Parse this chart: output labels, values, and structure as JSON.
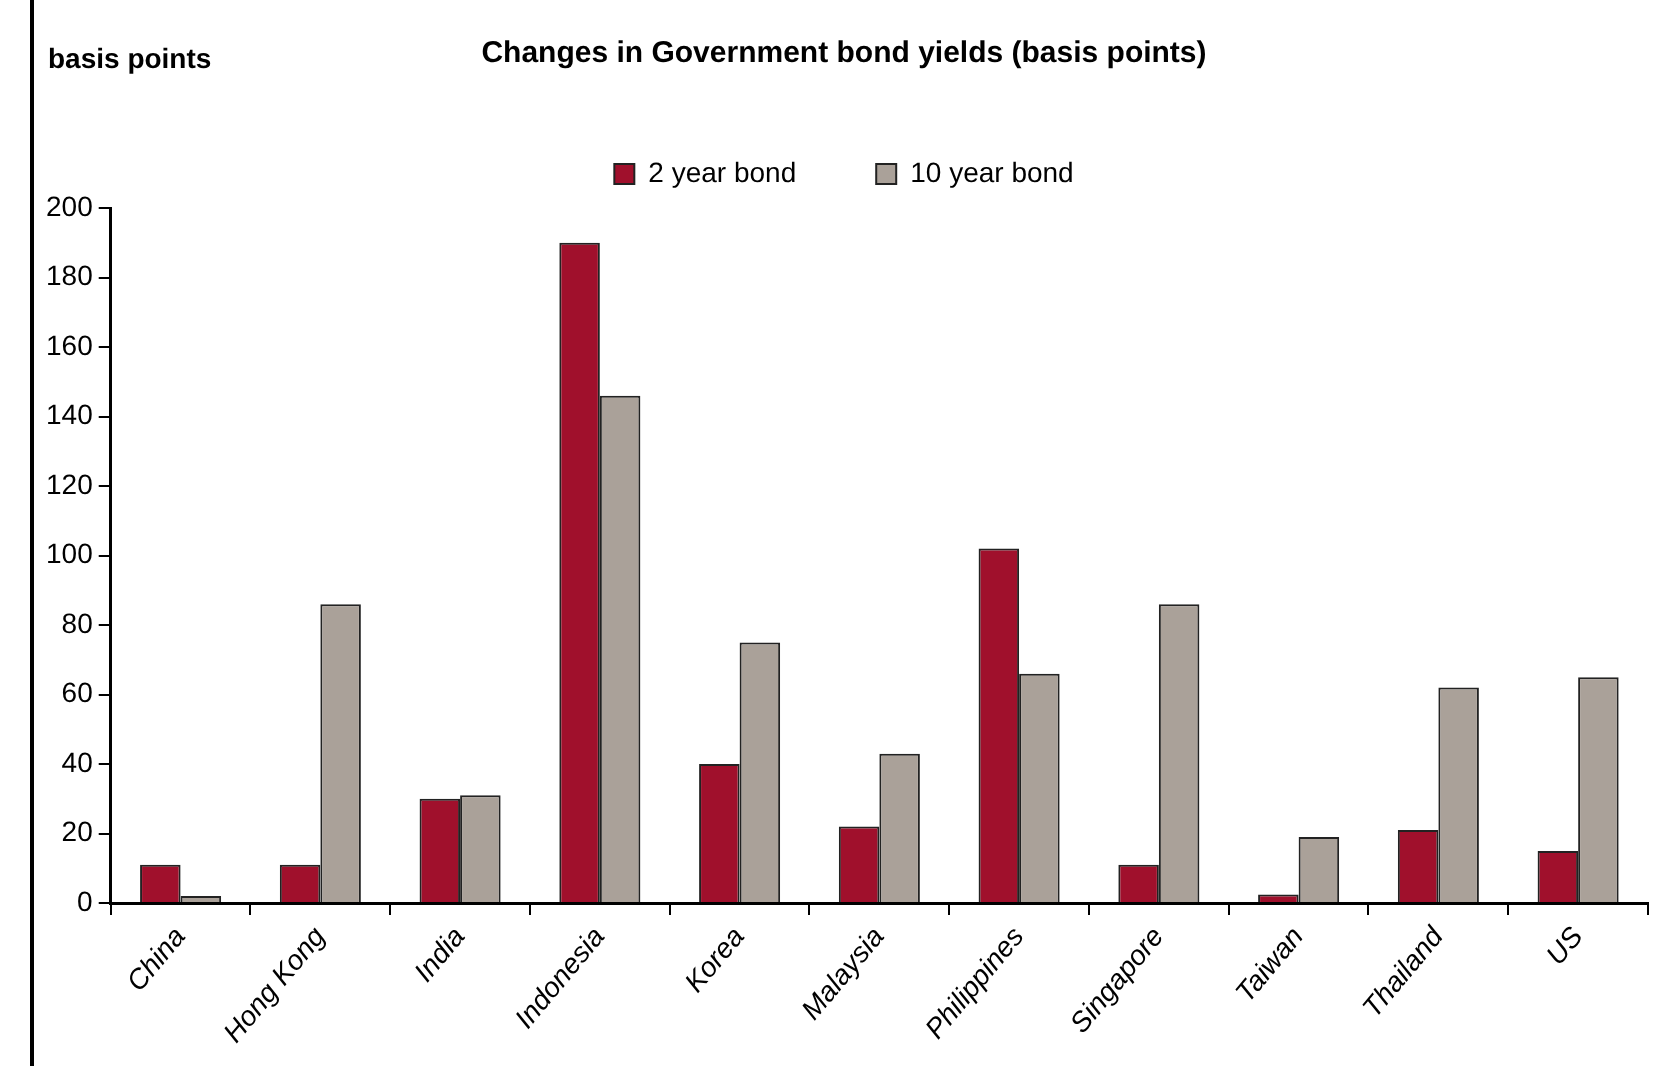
{
  "chart_data": {
    "type": "bar",
    "title": "Changes in Government bond yields (basis points)",
    "ylabel": "basis points",
    "categories": [
      "China",
      "Hong Kong",
      "India",
      "Indonesia",
      "Korea",
      "Malaysia",
      "Philippines",
      "Singapore",
      "Taiwan",
      "Thailand",
      "US"
    ],
    "series": [
      {
        "name": "2 year bond",
        "color": "#a0102c",
        "values": [
          11,
          11,
          30,
          190,
          40,
          22,
          102,
          11,
          2.5,
          21,
          15
        ]
      },
      {
        "name": "10 year bond",
        "color": "#aaa199",
        "values": [
          2,
          86,
          31,
          146,
          75,
          43,
          66,
          86,
          19,
          62,
          65
        ]
      }
    ],
    "ylim": [
      0,
      200
    ],
    "yticks": [
      0,
      20,
      40,
      60,
      80,
      100,
      120,
      140,
      160,
      180,
      200
    ],
    "grid": false,
    "legend": "top"
  }
}
